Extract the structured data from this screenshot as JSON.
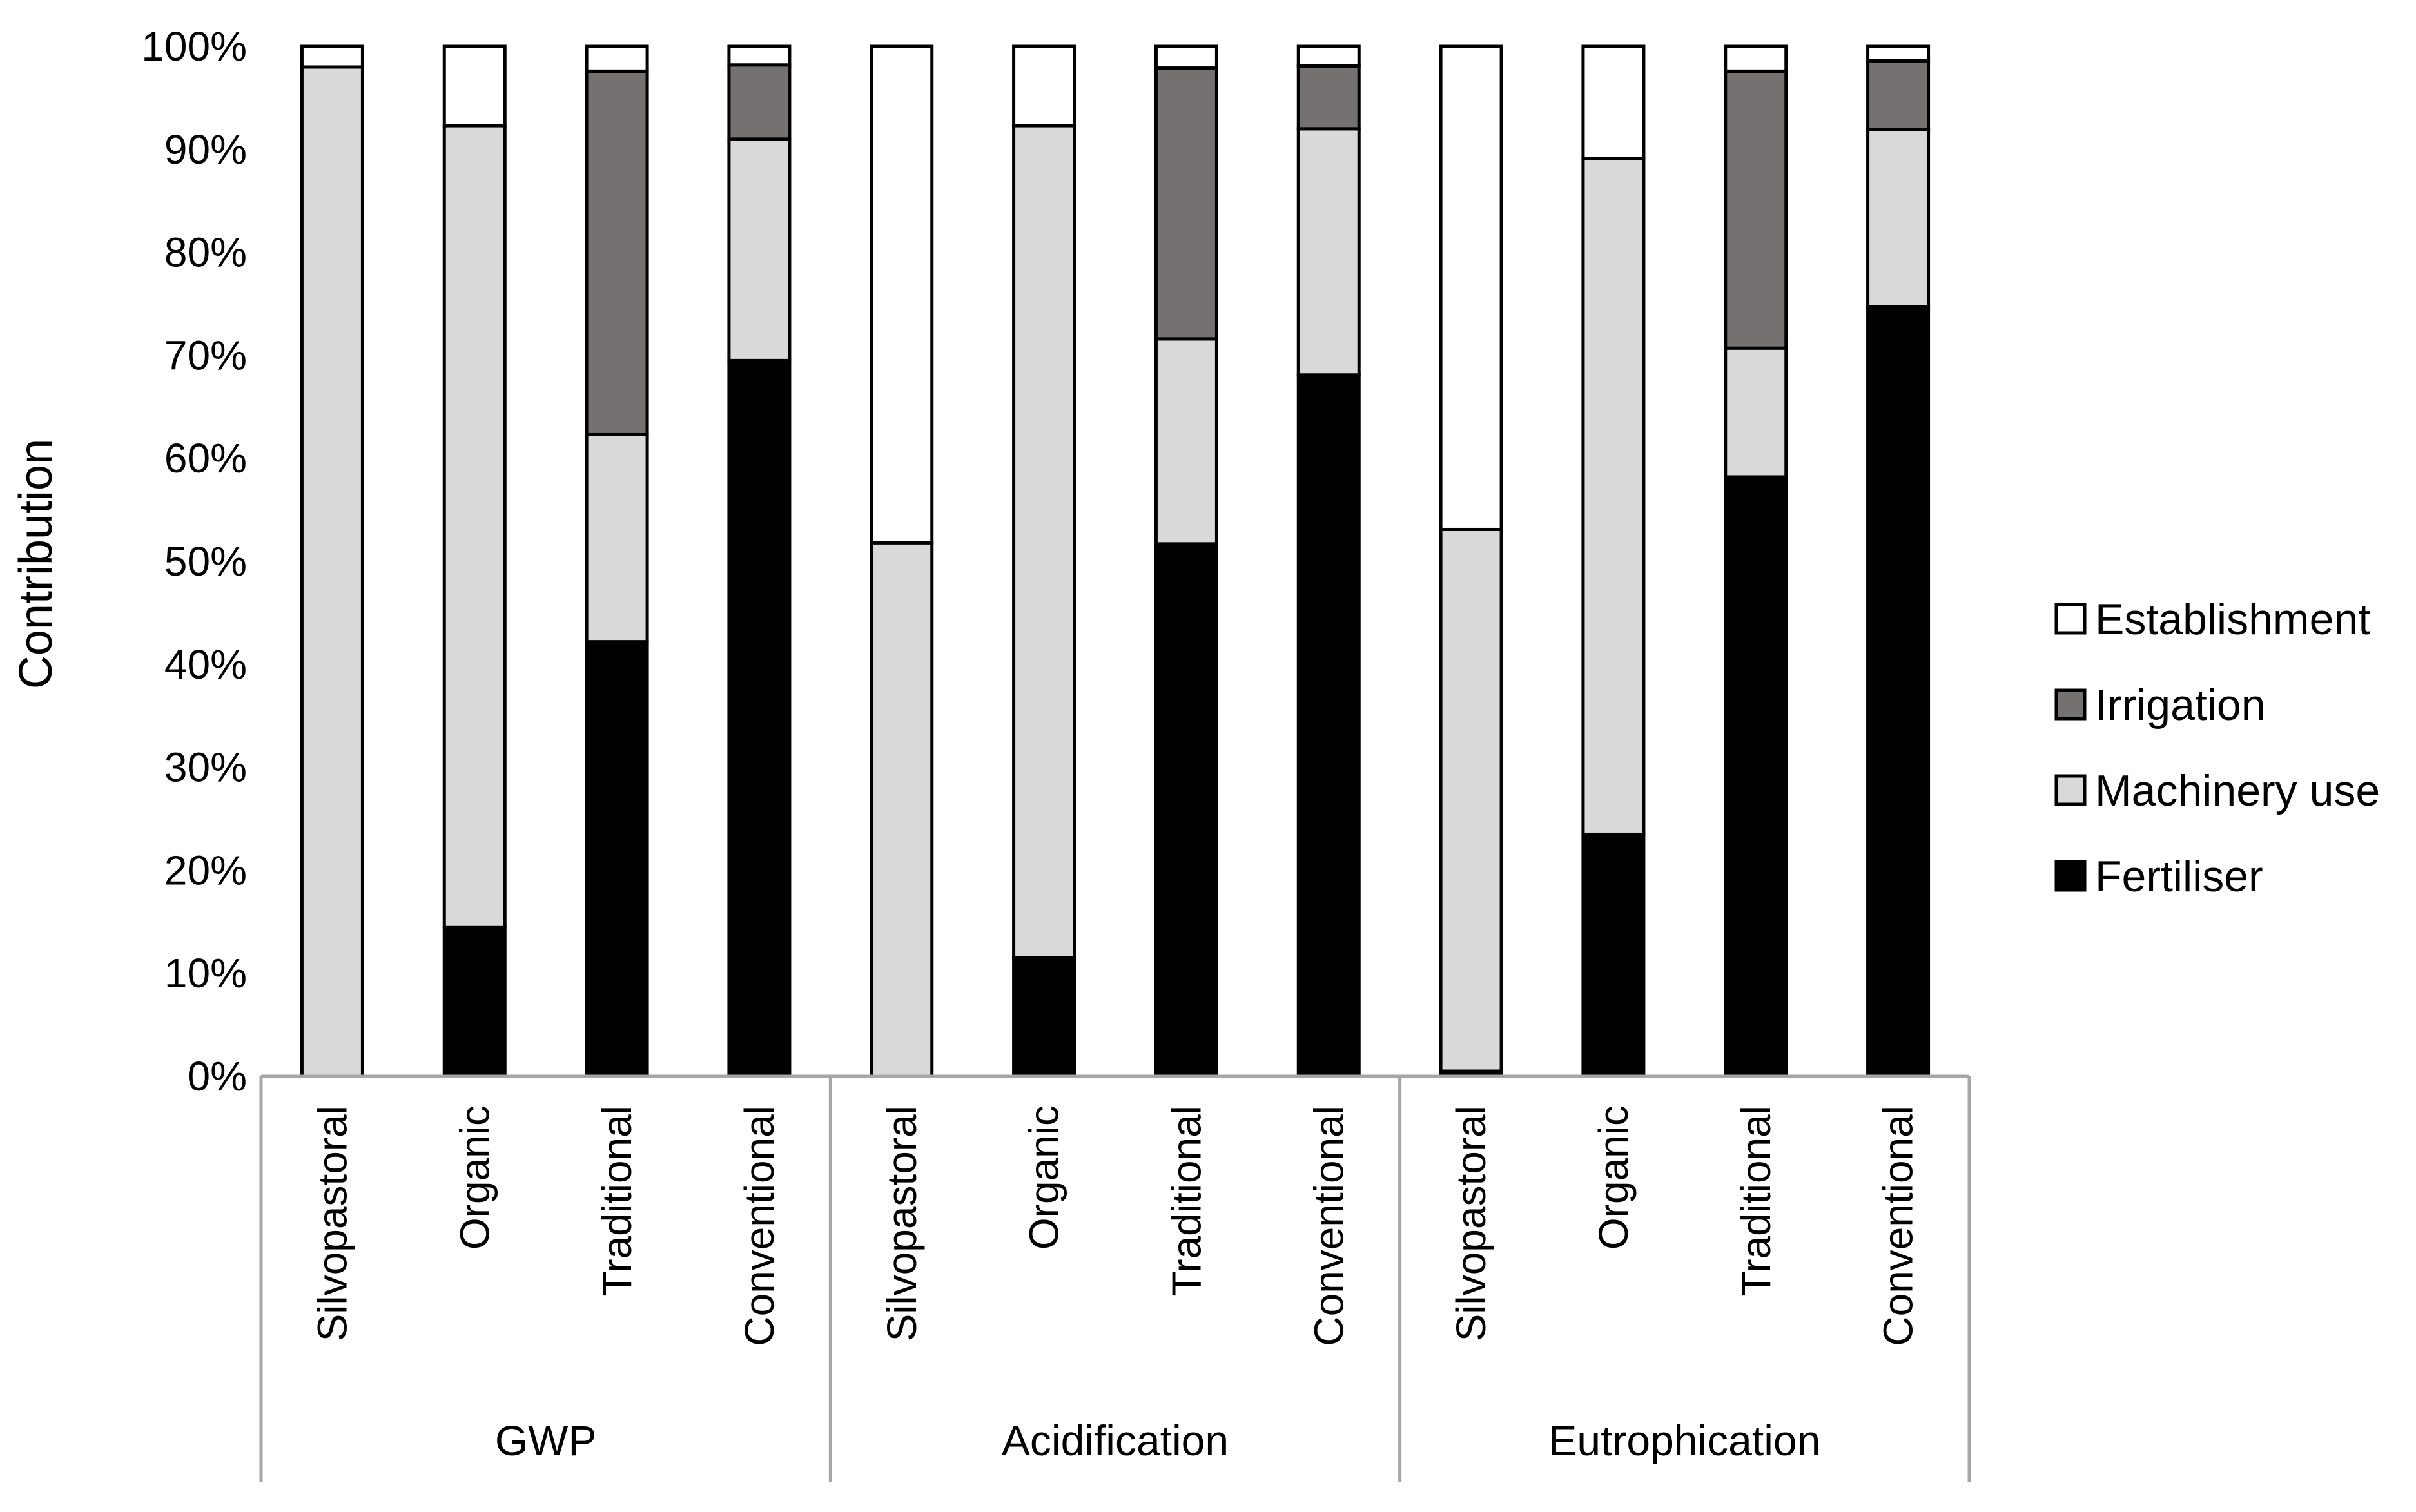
{
  "chart_data": {
    "type": "bar",
    "stacked": true,
    "percent": true,
    "title": "",
    "xlabel": "",
    "ylabel": "Contribution",
    "ylim": [
      0,
      100
    ],
    "y_ticks": [
      "0%",
      "10%",
      "20%",
      "30%",
      "40%",
      "50%",
      "60%",
      "70%",
      "80%",
      "90%",
      "100%"
    ],
    "groups": [
      {
        "name": "GWP",
        "categories": [
          "Silvopastoral",
          "Organic",
          "Traditional",
          "Conventional"
        ]
      },
      {
        "name": "Acidification",
        "categories": [
          "Silvopastoral",
          "Organic",
          "Traditional",
          "Conventional"
        ]
      },
      {
        "name": "Eutrophication",
        "categories": [
          "Silvopastoral",
          "Organic",
          "Traditional",
          "Conventional"
        ]
      }
    ],
    "series": [
      {
        "name": "Fertiliser",
        "color": "#000000",
        "values": [
          0,
          14.5,
          42.2,
          69.5,
          0,
          11.5,
          51.7,
          68.1,
          0.5,
          23.5,
          58.2,
          74.7
        ]
      },
      {
        "name": "Machinery use",
        "color": "#d9d9d9",
        "values": [
          98.0,
          77.8,
          20.1,
          21.5,
          51.8,
          80.8,
          19.9,
          23.9,
          52.6,
          65.6,
          12.5,
          17.2
        ]
      },
      {
        "name": "Irrigation",
        "color": "#767171",
        "values": [
          0,
          0,
          35.3,
          7.2,
          0,
          0,
          26.3,
          6.1,
          0,
          0,
          26.9,
          6.7
        ]
      },
      {
        "name": "Establishment",
        "color": "#ffffff",
        "values": [
          2.0,
          7.7,
          2.4,
          1.8,
          48.2,
          7.7,
          2.1,
          1.9,
          46.9,
          10.9,
          2.4,
          1.4
        ]
      }
    ],
    "legend": {
      "position": "right",
      "items": [
        "Establishment",
        "Irrigation",
        "Machinery use",
        "Fertiliser"
      ]
    },
    "grid": false
  }
}
